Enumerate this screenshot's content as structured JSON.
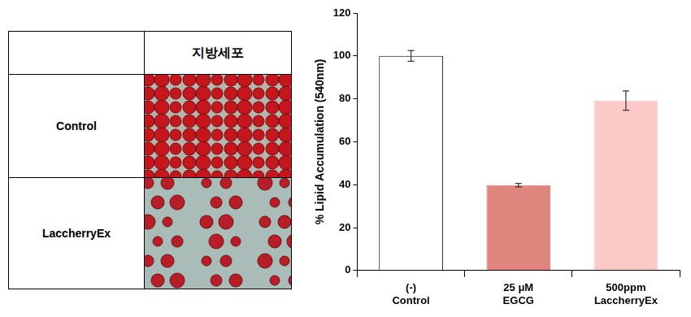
{
  "table": {
    "header": [
      "",
      "지방세포"
    ],
    "rows": [
      [
        "Control"
      ],
      [
        "LaccherryEx"
      ]
    ]
  },
  "chart_data": {
    "type": "bar",
    "y_label": "% Lipid Accumulation (540nm)",
    "categories": [
      [
        "(-)",
        "Control"
      ],
      [
        "25 μM",
        "EGCG"
      ],
      [
        "500ppm",
        "LaccherryEx"
      ]
    ],
    "values": [
      100,
      39.8,
      79.2
    ],
    "error": [
      2.5,
      0.8,
      4.5
    ],
    "colors": [
      "#ffffff",
      "#e0847e",
      "#fdc8c8"
    ],
    "ylim": [
      0,
      120
    ],
    "yticks": [
      0,
      20,
      40,
      60,
      80,
      100,
      120
    ],
    "grid": false
  }
}
